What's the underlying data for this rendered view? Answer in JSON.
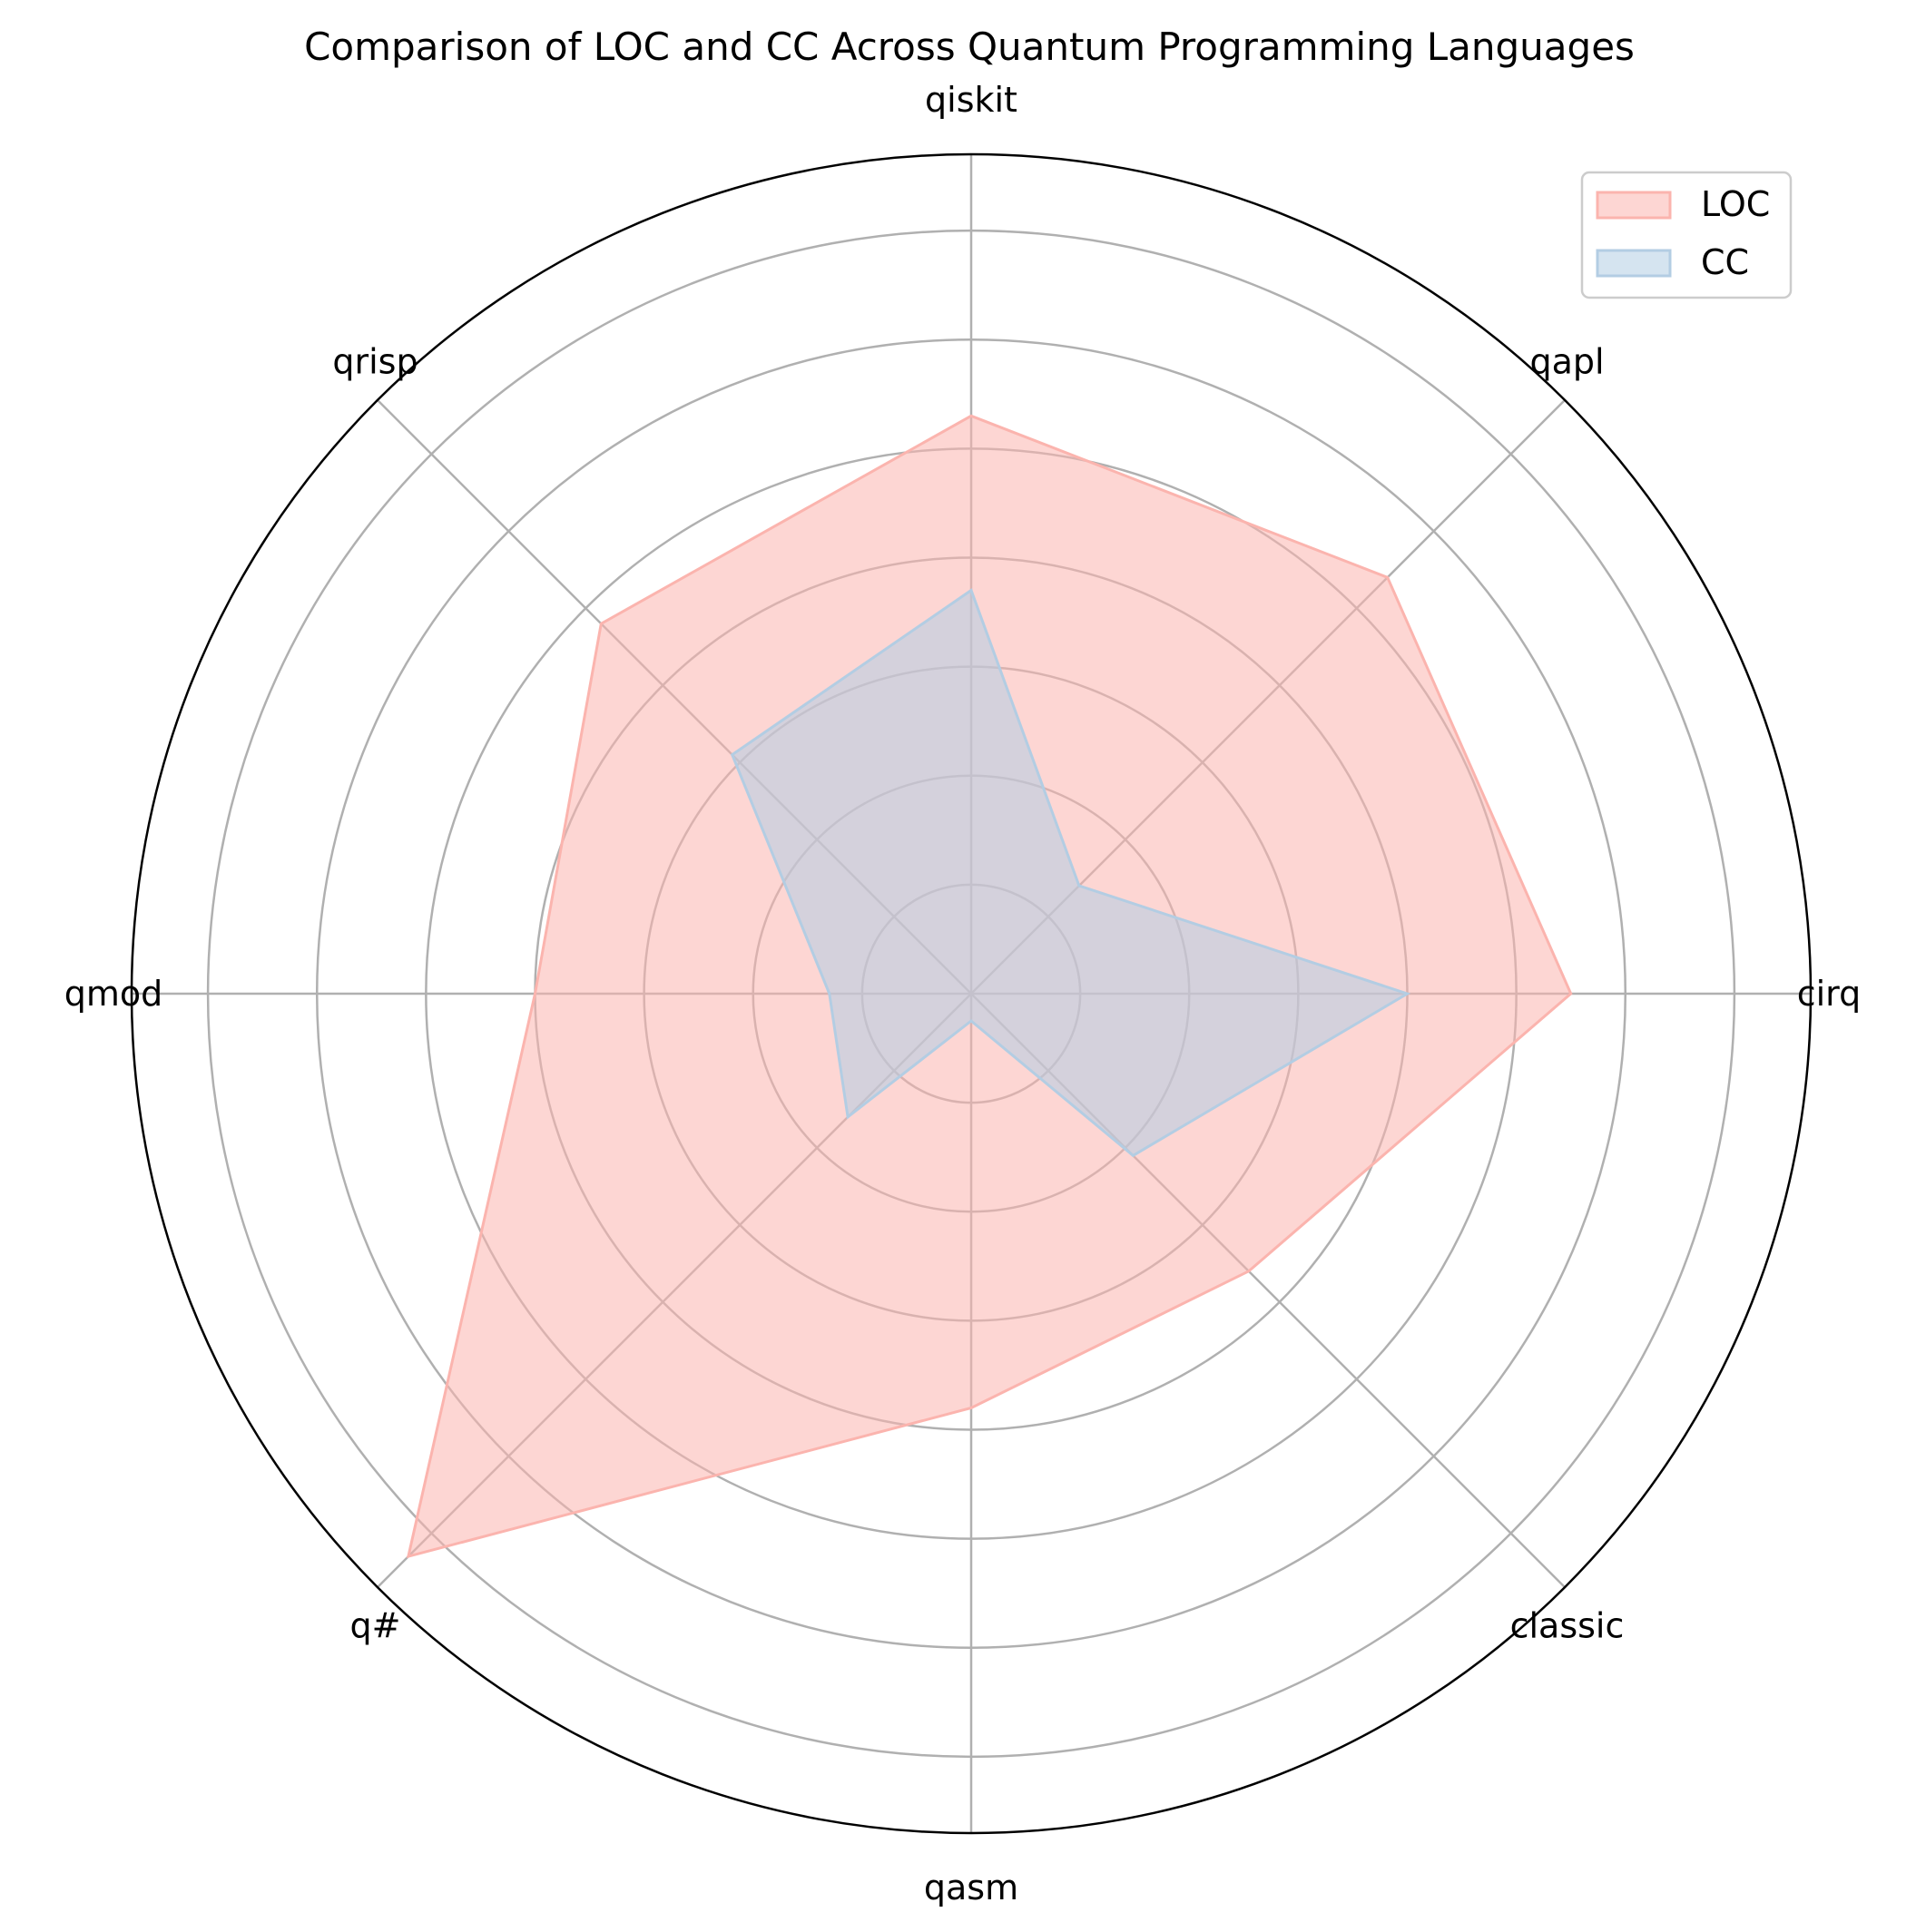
{
  "chart_data": {
    "type": "radar",
    "title": "Comparison of LOC and CC Across Quantum Programming Languages",
    "categories": [
      "cirq",
      "qapl",
      "qiskit",
      "qrisp",
      "qmod",
      "q#",
      "qasm",
      "classic"
    ],
    "series": [
      {
        "name": "LOC",
        "values": [
          5.5,
          5.4,
          5.3,
          4.8,
          4.0,
          7.3,
          3.8,
          3.6
        ],
        "color": "#fbb4ae"
      },
      {
        "name": "CC",
        "values": [
          4.0,
          1.4,
          3.7,
          3.1,
          1.3,
          1.6,
          0.25,
          2.1
        ],
        "color": "#b3cde3"
      }
    ],
    "rmax": 7.7,
    "gridlines": [
      1,
      2,
      3,
      4,
      5,
      6,
      7
    ],
    "grid": true,
    "legend_position": "top-right"
  }
}
